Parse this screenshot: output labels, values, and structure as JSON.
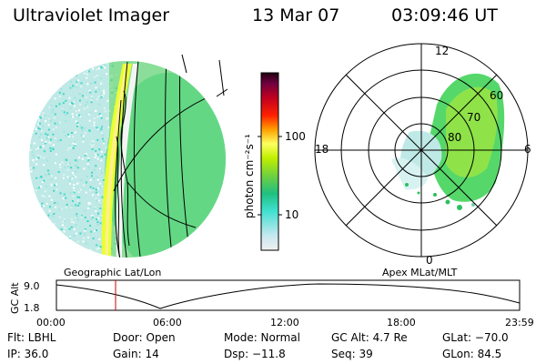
{
  "header": {
    "instrument": "Ultraviolet Imager",
    "date": "13 Mar 07",
    "time": "03:09:46 UT"
  },
  "geographic_panel": {
    "label": "Geographic Lat/Lon"
  },
  "apex_panel": {
    "label": "Apex MLat/MLT",
    "mlt_labels": {
      "top": "12",
      "left": "18",
      "right": "6",
      "bottom": "0"
    },
    "mlat_labels": [
      "60",
      "70",
      "80"
    ]
  },
  "colorbar": {
    "unit_label": "photon cm⁻²s⁻¹",
    "ticks": [
      "100",
      "10"
    ],
    "colors": [
      "#e8e8e8",
      "#c8e8f0",
      "#40e0d0",
      "#20c080",
      "#70d040",
      "#c0f000",
      "#ffff60",
      "#ffa000",
      "#ff2000",
      "#c00020",
      "#700040",
      "#200010"
    ]
  },
  "timeline": {
    "axis_label": "GC Alt",
    "y_ticks": [
      "9.0",
      "1.8"
    ],
    "x_ticks": [
      "00:00",
      "06:00",
      "12:00",
      "18:00",
      "23:59"
    ],
    "marker_color": "#cc0000"
  },
  "footer": {
    "flt": "Flt: LBHL",
    "door": "Door: Open",
    "mode": "Mode: Normal",
    "gc_alt": "GC Alt: 4.7 Re",
    "glat": "GLat: −70.0",
    "ip": "IP: 36.0",
    "gain": "Gain: 14",
    "dsp": "Dsp:  −11.8",
    "seq": "Seq: 39",
    "glon": "GLon:  84.5"
  }
}
